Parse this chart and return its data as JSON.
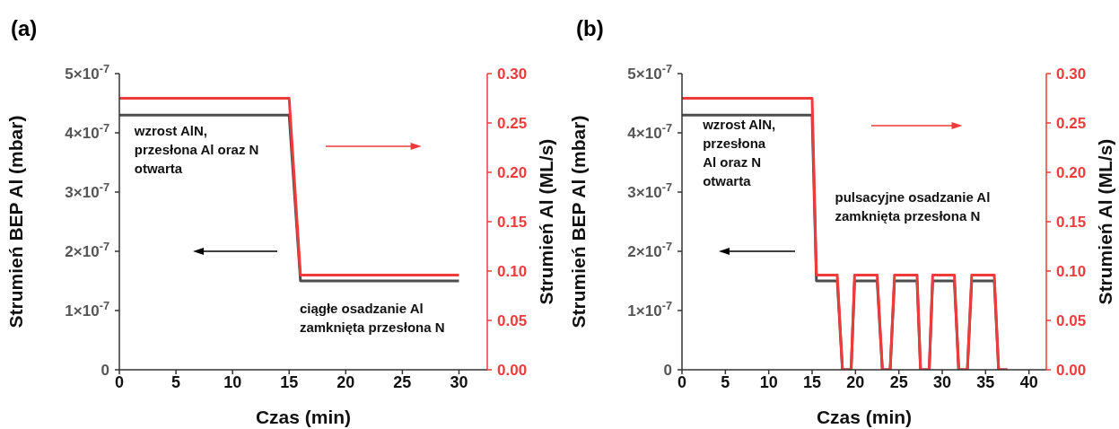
{
  "chart_data": [
    {
      "type": "line",
      "title": "(a)",
      "xlabel": "Czas (min)",
      "ylabel": "Strumień BEP Al (mbar)",
      "y2label": "Strumień Al (ML/s)",
      "xlim": [
        0,
        32.5
      ],
      "xticks": [
        0,
        5,
        10,
        15,
        20,
        25,
        30
      ],
      "ylim": [
        0,
        5e-07
      ],
      "yticks": [
        0,
        {
          "value": 1e-07,
          "label": "1×10$^{-7}$"
        },
        {
          "value": 2e-07,
          "label": "2×10$^{-7}$"
        },
        {
          "value": 3e-07,
          "label": "3×10$^{-7}$"
        },
        {
          "value": 4e-07,
          "label": "4×10$^{-7}$"
        },
        {
          "value": 5e-07,
          "label": "5×10$^{-7}$"
        }
      ],
      "y2lim": [
        0,
        0.3
      ],
      "y2ticks": [
        {
          "value": 0,
          "label": "0.00"
        },
        {
          "value": 0.05,
          "label": "0.05"
        },
        {
          "value": 0.1,
          "label": "0.10"
        },
        {
          "value": 0.15,
          "label": "0.15"
        },
        {
          "value": 0.2,
          "label": "0.20"
        },
        {
          "value": 0.25,
          "label": "0.25"
        },
        {
          "value": 0.3,
          "label": "0.30"
        }
      ],
      "series": [
        {
          "color": "#4d4d4d",
          "x": [
            0,
            15,
            16,
            30
          ],
          "values": [
            4.3e-07,
            4.3e-07,
            1.5e-07,
            1.5e-07
          ]
        },
        {
          "color": "#ef3b3b",
          "axis": "y2",
          "x": [
            0,
            15,
            16,
            30
          ],
          "values": [
            0.275,
            0.275,
            0.096,
            0.096
          ]
        }
      ],
      "annotations": [
        "wzrost AlN,\nprzesłona Al oraz N\notwarta",
        "ciągłe osadzanie Al\nzamknięta przesłona N"
      ]
    },
    {
      "type": "line",
      "title": "(b)",
      "xlabel": "Czas (min)",
      "ylabel": "Strumień BEP Al (mbar)",
      "y2label": "Strumień Al (ML/s)",
      "xlim": [
        0,
        42
      ],
      "xticks": [
        0,
        5,
        10,
        15,
        20,
        25,
        30,
        35,
        40
      ],
      "ylim": [
        0,
        5e-07
      ],
      "yticks": [
        0,
        {
          "value": 1e-07,
          "label": "1×10$^{-7}$"
        },
        {
          "value": 2e-07,
          "label": "2×10$^{-7}$"
        },
        {
          "value": 3e-07,
          "label": "3×10$^{-7}$"
        },
        {
          "value": 4e-07,
          "label": "4×10$^{-7}$"
        },
        {
          "value": 5e-07,
          "label": "5×10$^{-7}$"
        }
      ],
      "y2lim": [
        0,
        0.3
      ],
      "y2ticks": [
        {
          "value": 0,
          "label": "0.00"
        },
        {
          "value": 0.05,
          "label": "0.05"
        },
        {
          "value": 0.1,
          "label": "0.10"
        },
        {
          "value": 0.15,
          "label": "0.15"
        },
        {
          "value": 0.2,
          "label": "0.20"
        },
        {
          "value": 0.25,
          "label": "0.25"
        },
        {
          "value": 0.3,
          "label": "0.30"
        }
      ],
      "series": [
        {
          "color": "#4d4d4d",
          "x": [
            0,
            15,
            15.5,
            17.9,
            18.5,
            19.5,
            19.9,
            22.5,
            23.1,
            24.0,
            24.5,
            27.1,
            27.5,
            28.5,
            28.9,
            31.4,
            31.9,
            32.9,
            33.4,
            36.0,
            36.5,
            37.5
          ],
          "values": [
            4.3e-07,
            4.3e-07,
            1.5e-07,
            1.5e-07,
            0,
            0,
            1.5e-07,
            1.5e-07,
            0,
            0,
            1.5e-07,
            1.5e-07,
            0,
            0,
            1.5e-07,
            1.5e-07,
            0,
            0,
            1.5e-07,
            1.5e-07,
            0,
            0
          ]
        },
        {
          "color": "#ef3b3b",
          "axis": "y2",
          "x": [
            0,
            15,
            15.5,
            17.9,
            18.5,
            19.5,
            19.9,
            22.5,
            23.1,
            24.0,
            24.5,
            27.1,
            27.5,
            28.5,
            28.9,
            31.4,
            31.9,
            32.9,
            33.4,
            36.0,
            36.5,
            37.5
          ],
          "values": [
            0.275,
            0.275,
            0.096,
            0.096,
            0,
            0,
            0.096,
            0.096,
            0,
            0,
            0.096,
            0.096,
            0,
            0,
            0.096,
            0.096,
            0,
            0,
            0.096,
            0.096,
            0,
            0
          ]
        }
      ],
      "annotations": [
        "wzrost AlN,\nprzesłona\nAl oraz N\notwarta",
        "pulsacyjne osadzanie Al\nzamknięta przesłona N"
      ]
    }
  ]
}
